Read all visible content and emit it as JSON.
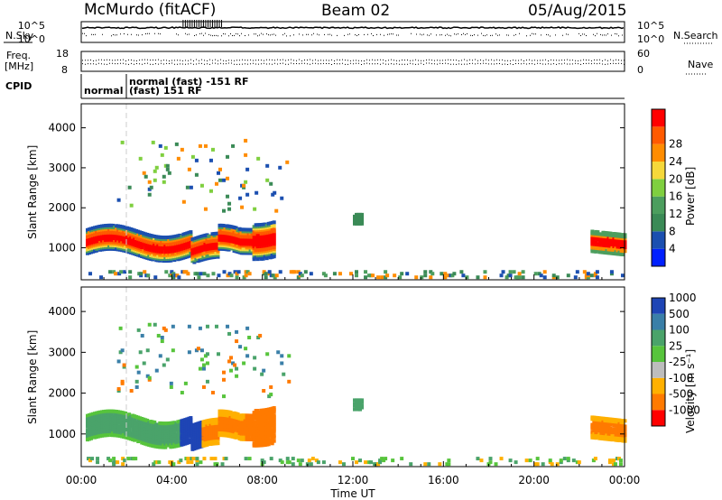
{
  "header": {
    "station": "McMurdo (fitACF)",
    "beam": "Beam 02",
    "date": "05/Aug/2015"
  },
  "top_panels": {
    "nsky_label": "N.Sky",
    "nsearch_label": "N.Search",
    "freq_label_1": "Freq.",
    "freq_label_2": "[MHz]",
    "nave_label": "Nave",
    "cpid_label": "CPID",
    "noise_left_ticks": [
      "10^5",
      "10^0"
    ],
    "noise_right_ticks": [
      "10^5",
      "10^0"
    ],
    "freq_ticks": [
      "18",
      "8"
    ],
    "nave_ticks": [
      "60",
      "0"
    ],
    "cpid_text_1": "normal",
    "cpid_text_2": "normal (fast) -151 RF",
    "cpid_text_3": "(fast) 151 RF"
  },
  "colors": {
    "power": [
      "#0020ff",
      "#1b4fb0",
      "#3a8a56",
      "#4c9e5e",
      "#7fcf3f",
      "#f5d83a",
      "#ff8c00",
      "#ff5a00",
      "#ff0000"
    ],
    "velocity": [
      "#ff0000",
      "#ff7a00",
      "#ffb000",
      "#bdbdbd",
      "#57c43c",
      "#4aa36a",
      "#3a7fa8",
      "#1e45b5"
    ]
  },
  "chart_data": [
    {
      "type": "heatmap",
      "name": "power",
      "colorbar_label": "Power [dB]",
      "colorbar_ticks": [
        "4",
        "8",
        "12",
        "16",
        "20",
        "24",
        "28"
      ],
      "ylabel": "Slant Range [km]",
      "y_ticks": [
        "1000",
        "2000",
        "3000",
        "4000"
      ],
      "ylim": [
        200,
        4600
      ],
      "xlim": [
        0,
        24
      ]
    },
    {
      "type": "heatmap",
      "name": "velocity",
      "colorbar_label": "Velocity [m s⁻¹]",
      "colorbar_ticks": [
        "-1000",
        "-500",
        "-100",
        "-25",
        "25",
        "100",
        "500",
        "1000"
      ],
      "ylabel": "Slant Range [km]",
      "y_ticks": [
        "1000",
        "2000",
        "3000",
        "4000"
      ],
      "ylim": [
        200,
        4600
      ],
      "xlim": [
        0,
        24
      ]
    }
  ],
  "x_axis": {
    "ticks": [
      "00:00",
      "04:00",
      "08:00",
      "12:00",
      "16:00",
      "20:00",
      "00:00"
    ],
    "label": "Time UT"
  }
}
